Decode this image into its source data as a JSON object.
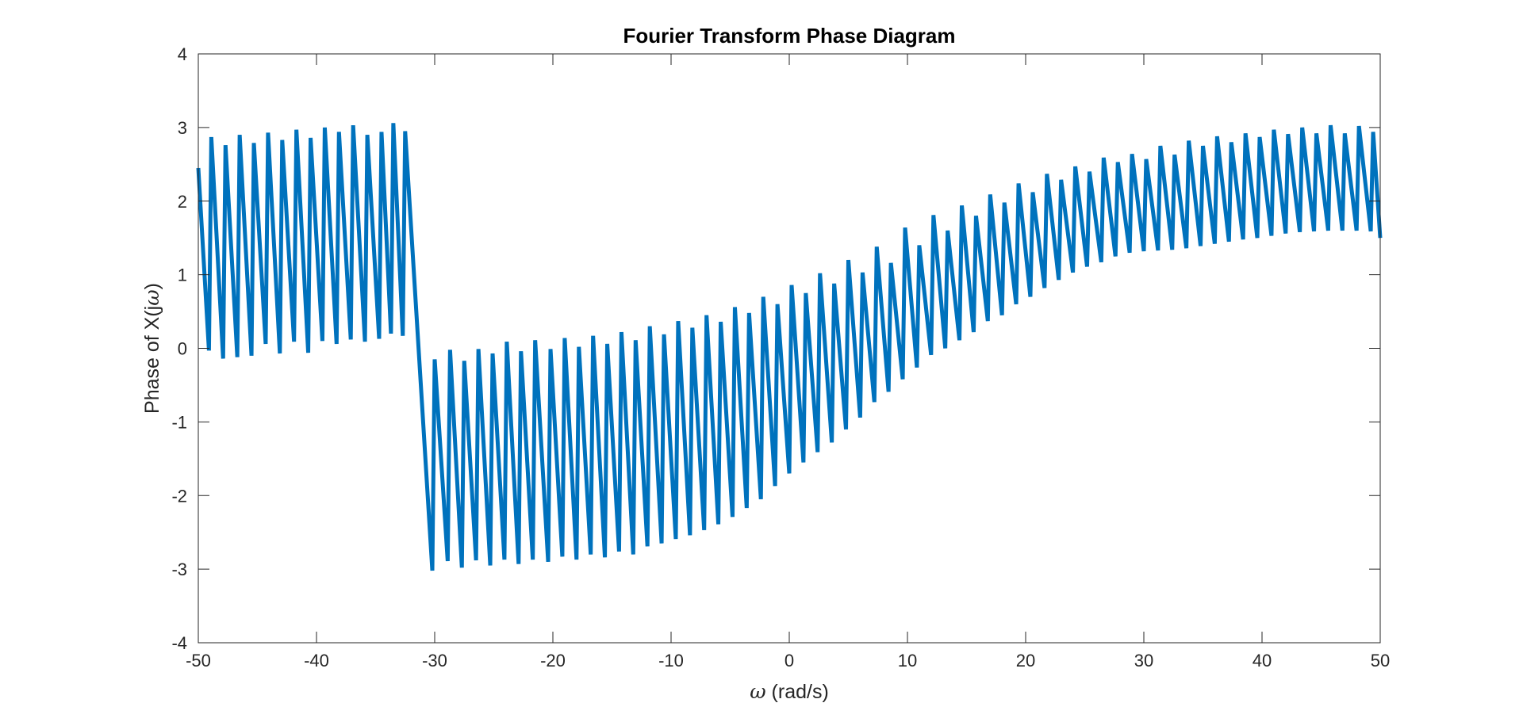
{
  "chart_data": {
    "type": "line",
    "title": "Fourier Transform Phase Diagram",
    "xlabel": {
      "symbol": "ω",
      "rest": " (rad/s)"
    },
    "ylabel": {
      "prefix": "Phase of X(j",
      "symbol": "ω",
      "suffix": ")"
    },
    "xlim": [
      -50,
      50
    ],
    "ylim": [
      -4,
      4
    ],
    "xticks": [
      -50,
      -40,
      -30,
      -20,
      -10,
      0,
      10,
      20,
      30,
      40,
      50
    ],
    "yticks": [
      -4,
      -3,
      -2,
      -1,
      0,
      1,
      2,
      3,
      4
    ],
    "xtick_labels": [
      "-50",
      "-40",
      "-30",
      "-20",
      "-10",
      "0",
      "10",
      "20",
      "30",
      "40",
      "50"
    ],
    "ytick_labels": [
      "-4",
      "-3",
      "-2",
      "-1",
      "0",
      "1",
      "2",
      "3",
      "4"
    ],
    "grid": false,
    "line_color": "#0072BD",
    "series": [
      {
        "points": [
          [
            -50.0,
            2.45
          ],
          [
            -49.1,
            -0.03
          ],
          [
            -48.9,
            2.87
          ],
          [
            -47.9,
            -0.14
          ],
          [
            -47.7,
            2.76
          ],
          [
            -46.7,
            -0.12
          ],
          [
            -46.5,
            2.9
          ],
          [
            -45.5,
            -0.1
          ],
          [
            -45.3,
            2.79
          ],
          [
            -44.3,
            0.06
          ],
          [
            -44.1,
            2.93
          ],
          [
            -43.1,
            -0.07
          ],
          [
            -42.9,
            2.83
          ],
          [
            -41.9,
            0.09
          ],
          [
            -41.7,
            2.97
          ],
          [
            -40.7,
            -0.06
          ],
          [
            -40.5,
            2.86
          ],
          [
            -39.5,
            0.1
          ],
          [
            -39.3,
            3.0
          ],
          [
            -38.3,
            0.06
          ],
          [
            -38.1,
            2.94
          ],
          [
            -37.1,
            0.12
          ],
          [
            -36.9,
            3.03
          ],
          [
            -35.9,
            0.09
          ],
          [
            -35.7,
            2.9
          ],
          [
            -34.7,
            0.13
          ],
          [
            -34.5,
            2.94
          ],
          [
            -33.7,
            0.2
          ],
          [
            -33.5,
            3.06
          ],
          [
            -32.7,
            0.17
          ],
          [
            -32.5,
            2.95
          ],
          [
            -30.2,
            -3.02
          ],
          [
            -30.0,
            -0.15
          ],
          [
            -28.9,
            -2.89
          ],
          [
            -28.7,
            -0.02
          ],
          [
            -27.7,
            -2.98
          ],
          [
            -27.5,
            -0.17
          ],
          [
            -26.5,
            -2.88
          ],
          [
            -26.3,
            -0.01
          ],
          [
            -25.3,
            -2.95
          ],
          [
            -25.1,
            -0.07
          ],
          [
            -24.1,
            -2.87
          ],
          [
            -23.9,
            0.09
          ],
          [
            -22.9,
            -2.93
          ],
          [
            -22.7,
            -0.04
          ],
          [
            -21.7,
            -2.87
          ],
          [
            -21.5,
            0.11
          ],
          [
            -20.4,
            -2.9
          ],
          [
            -20.2,
            -0.01
          ],
          [
            -19.2,
            -2.83
          ],
          [
            -19.0,
            0.14
          ],
          [
            -18.0,
            -2.87
          ],
          [
            -17.8,
            0.02
          ],
          [
            -16.8,
            -2.8
          ],
          [
            -16.6,
            0.17
          ],
          [
            -15.6,
            -2.84
          ],
          [
            -15.4,
            0.06
          ],
          [
            -14.4,
            -2.76
          ],
          [
            -14.2,
            0.22
          ],
          [
            -13.2,
            -2.8
          ],
          [
            -13.0,
            0.11
          ],
          [
            -12.0,
            -2.69
          ],
          [
            -11.8,
            0.3
          ],
          [
            -10.8,
            -2.65
          ],
          [
            -10.6,
            0.19
          ],
          [
            -9.6,
            -2.59
          ],
          [
            -9.4,
            0.37
          ],
          [
            -8.4,
            -2.54
          ],
          [
            -8.2,
            0.28
          ],
          [
            -7.2,
            -2.47
          ],
          [
            -7.0,
            0.45
          ],
          [
            -6.0,
            -2.39
          ],
          [
            -5.8,
            0.36
          ],
          [
            -4.8,
            -2.29
          ],
          [
            -4.6,
            0.56
          ],
          [
            -3.6,
            -2.17
          ],
          [
            -3.4,
            0.48
          ],
          [
            -2.4,
            -2.05
          ],
          [
            -2.2,
            0.7
          ],
          [
            -1.2,
            -1.87
          ],
          [
            -1.0,
            0.6
          ],
          [
            0.0,
            -1.7
          ],
          [
            0.2,
            0.86
          ],
          [
            1.2,
            -1.55
          ],
          [
            1.4,
            0.75
          ],
          [
            2.4,
            -1.41
          ],
          [
            2.6,
            1.02
          ],
          [
            3.6,
            -1.28
          ],
          [
            3.8,
            0.88
          ],
          [
            4.8,
            -1.1
          ],
          [
            5.0,
            1.2
          ],
          [
            6.0,
            -0.94
          ],
          [
            6.2,
            1.03
          ],
          [
            7.2,
            -0.73
          ],
          [
            7.4,
            1.38
          ],
          [
            8.4,
            -0.59
          ],
          [
            8.6,
            1.16
          ],
          [
            9.6,
            -0.42
          ],
          [
            9.8,
            1.64
          ],
          [
            10.8,
            -0.26
          ],
          [
            11.0,
            1.4
          ],
          [
            12.0,
            -0.09
          ],
          [
            12.2,
            1.81
          ],
          [
            13.2,
            0.0
          ],
          [
            13.4,
            1.6
          ],
          [
            14.4,
            0.11
          ],
          [
            14.6,
            1.94
          ],
          [
            15.6,
            0.22
          ],
          [
            15.8,
            1.8
          ],
          [
            16.8,
            0.37
          ],
          [
            17.0,
            2.09
          ],
          [
            18.0,
            0.45
          ],
          [
            18.2,
            1.98
          ],
          [
            19.2,
            0.6
          ],
          [
            19.4,
            2.24
          ],
          [
            20.4,
            0.7
          ],
          [
            20.6,
            2.12
          ],
          [
            21.6,
            0.82
          ],
          [
            21.8,
            2.37
          ],
          [
            22.8,
            0.93
          ],
          [
            23.0,
            2.29
          ],
          [
            24.0,
            1.03
          ],
          [
            24.2,
            2.47
          ],
          [
            25.2,
            1.11
          ],
          [
            25.4,
            2.4
          ],
          [
            26.4,
            1.17
          ],
          [
            26.6,
            2.59
          ],
          [
            27.6,
            1.25
          ],
          [
            27.8,
            2.53
          ],
          [
            28.8,
            1.3
          ],
          [
            29.0,
            2.64
          ],
          [
            30.0,
            1.32
          ],
          [
            30.2,
            2.57
          ],
          [
            31.2,
            1.33
          ],
          [
            31.4,
            2.75
          ],
          [
            32.4,
            1.34
          ],
          [
            32.6,
            2.63
          ],
          [
            33.6,
            1.36
          ],
          [
            33.8,
            2.82
          ],
          [
            34.8,
            1.39
          ],
          [
            35.0,
            2.75
          ],
          [
            36.0,
            1.42
          ],
          [
            36.2,
            2.88
          ],
          [
            37.2,
            1.45
          ],
          [
            37.4,
            2.8
          ],
          [
            38.4,
            1.48
          ],
          [
            38.6,
            2.92
          ],
          [
            39.6,
            1.5
          ],
          [
            39.8,
            2.87
          ],
          [
            40.8,
            1.53
          ],
          [
            41.0,
            2.97
          ],
          [
            42.0,
            1.56
          ],
          [
            42.2,
            2.91
          ],
          [
            43.2,
            1.58
          ],
          [
            43.4,
            3.0
          ],
          [
            44.4,
            1.59
          ],
          [
            44.6,
            2.92
          ],
          [
            45.6,
            1.6
          ],
          [
            45.8,
            3.03
          ],
          [
            46.8,
            1.6
          ],
          [
            47.0,
            2.92
          ],
          [
            48.0,
            1.6
          ],
          [
            48.2,
            3.02
          ],
          [
            49.2,
            1.59
          ],
          [
            49.4,
            2.94
          ],
          [
            50.0,
            1.5
          ]
        ]
      }
    ]
  }
}
